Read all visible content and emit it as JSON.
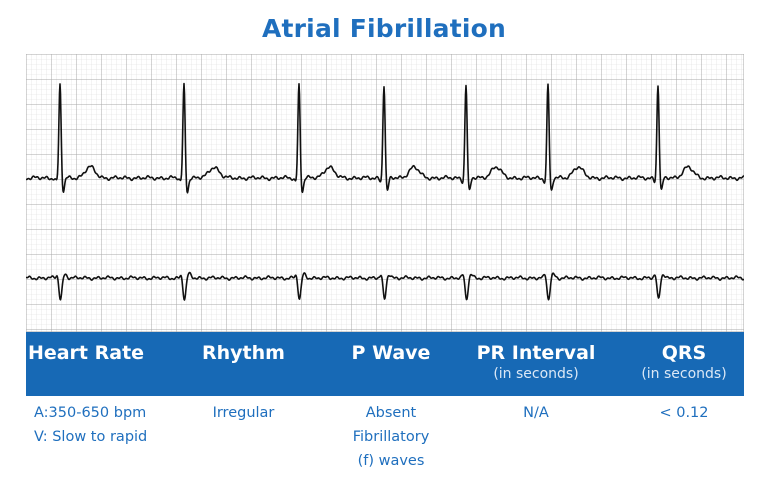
{
  "title": "Atrial Fibrillation",
  "colors": {
    "accent": "#1769b5",
    "title": "#1f6fbe",
    "grid_minor": "#dddddd",
    "grid_major": "#aaaaaa",
    "trace": "#111111"
  },
  "table": {
    "headers": [
      {
        "label": "Heart Rate",
        "sub": ""
      },
      {
        "label": "Rhythm",
        "sub": ""
      },
      {
        "label": "P Wave",
        "sub": ""
      },
      {
        "label": "PR Interval",
        "sub": "(in seconds)"
      },
      {
        "label": "QRS",
        "sub": "(in seconds)"
      }
    ],
    "values": [
      [
        "A:350-650 bpm",
        "V: Slow to rapid"
      ],
      [
        "Irregular"
      ],
      [
        "Absent",
        "Fibrillatory",
        "(f) waves"
      ],
      [
        "N/A"
      ],
      [
        "< 0.12"
      ]
    ]
  }
}
